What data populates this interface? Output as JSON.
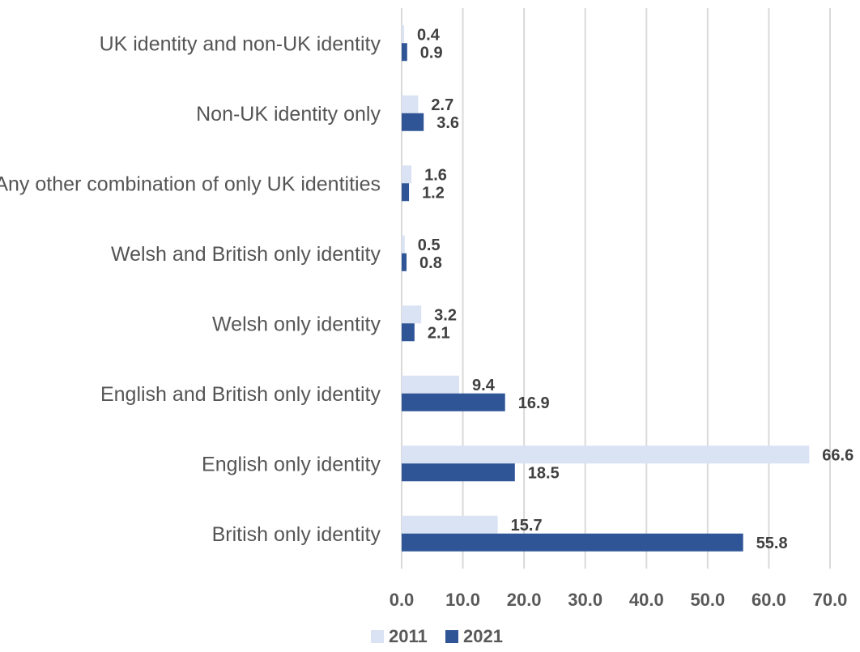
{
  "chart_data": {
    "type": "bar",
    "orientation": "horizontal",
    "categories": [
      "UK identity and non-UK identity",
      "Non-UK identity only",
      "Any other combination of only UK identities",
      "Welsh and British only identity",
      "Welsh only identity",
      "English and British only identity",
      "English only identity",
      "British only identity"
    ],
    "series": [
      {
        "name": "2011",
        "color": "#dae3f3",
        "values": [
          0.4,
          2.7,
          1.6,
          0.5,
          3.2,
          9.4,
          66.6,
          15.7
        ],
        "labels": [
          "0.4",
          "2.7",
          "1.6",
          "0.5",
          "3.2",
          "9.4",
          "66.6",
          "15.7"
        ]
      },
      {
        "name": "2021",
        "color": "#2f5597",
        "values": [
          0.9,
          3.6,
          1.2,
          0.8,
          2.1,
          16.9,
          18.5,
          55.8
        ],
        "labels": [
          "0.9",
          "3.6",
          "1.2",
          "0.8",
          "2.1",
          "16.9",
          "18.5",
          "55.8"
        ]
      }
    ],
    "x_ticks": [
      "0.0",
      "10.0",
      "20.0",
      "30.0",
      "40.0",
      "50.0",
      "60.0",
      "70.0"
    ],
    "xlim": [
      0,
      70
    ],
    "title": "",
    "xlabel": "",
    "ylabel": "",
    "grid": true,
    "legend_position": "bottom-center"
  }
}
